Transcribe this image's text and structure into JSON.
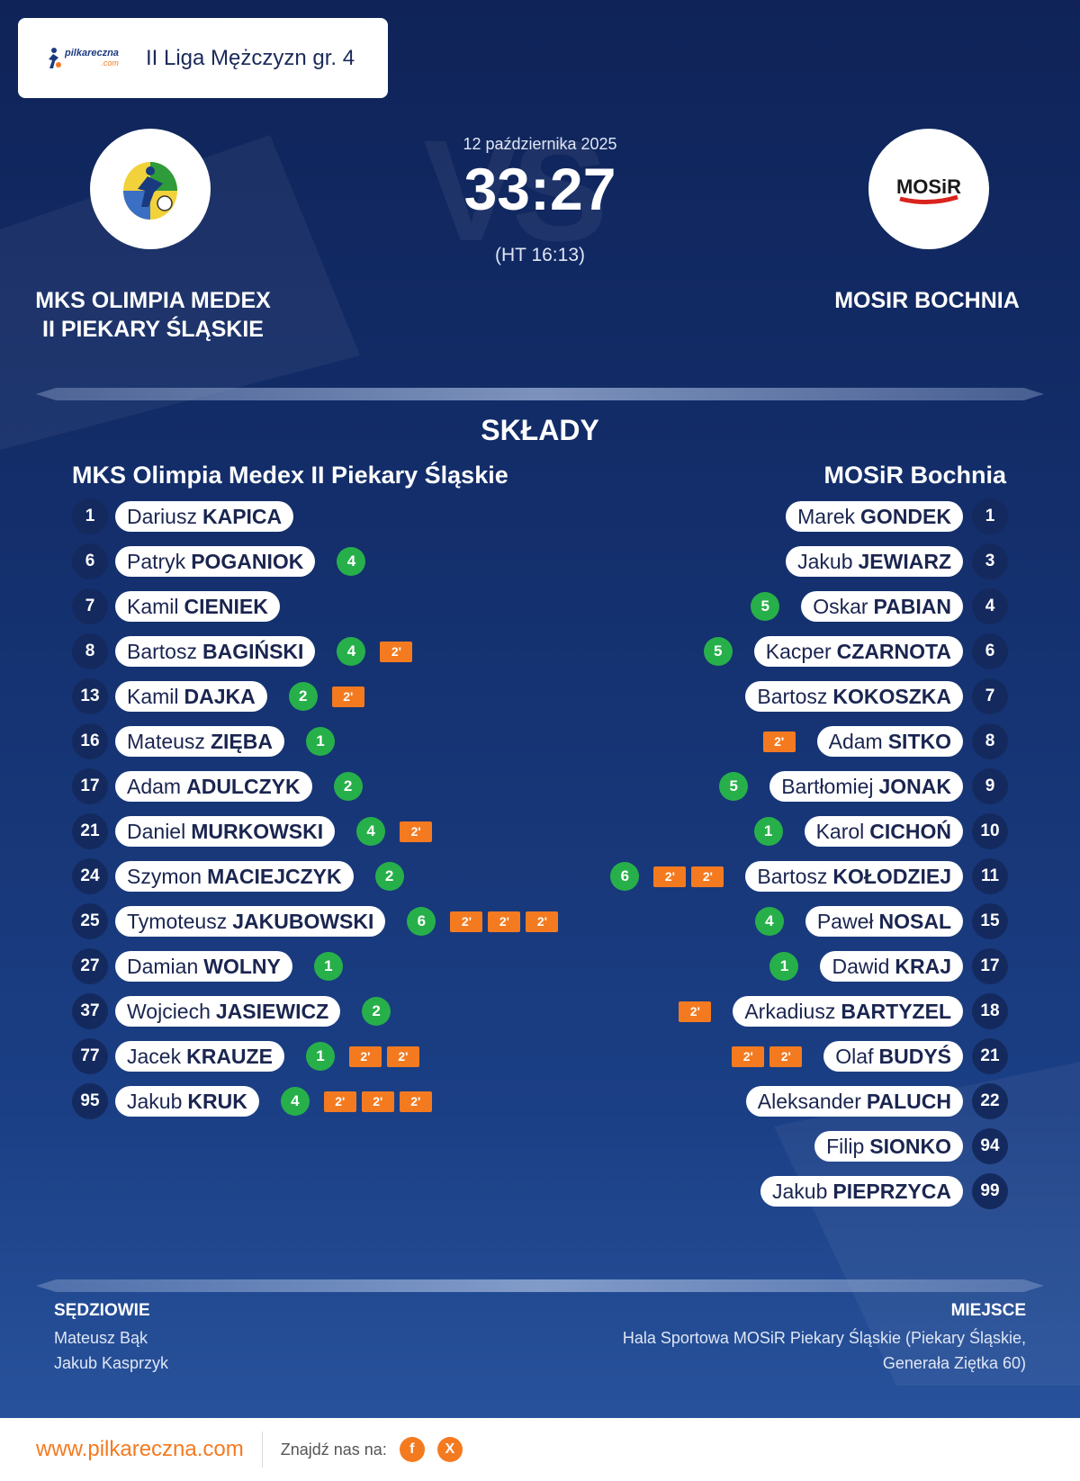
{
  "league": {
    "title": "II Liga Mężczyzn gr. 4",
    "logo_text": "pilkareczna",
    "logo_subtext": ".com"
  },
  "match": {
    "date": "12 października 2025",
    "score": "33:27",
    "halftime": "(HT 16:13)",
    "vs_watermark": "VS"
  },
  "home": {
    "name_line1": "MKS OLIMPIA MEDEX",
    "name_line2": "II PIEKARY ŚLĄSKIE",
    "squad_title": "MKS Olimpia Medex II Piekary Śląskie",
    "players": [
      {
        "num": "1",
        "first": "Dariusz",
        "last": "KAPICA",
        "goals": null,
        "pens": 0
      },
      {
        "num": "6",
        "first": "Patryk",
        "last": "POGANIOK",
        "goals": "4",
        "pens": 0
      },
      {
        "num": "7",
        "first": "Kamil",
        "last": "CIENIEK",
        "goals": null,
        "pens": 0
      },
      {
        "num": "8",
        "first": "Bartosz",
        "last": "BAGIŃSKI",
        "goals": "4",
        "pens": 1
      },
      {
        "num": "13",
        "first": "Kamil",
        "last": "DAJKA",
        "goals": "2",
        "pens": 1
      },
      {
        "num": "16",
        "first": "Mateusz",
        "last": "ZIĘBA",
        "goals": "1",
        "pens": 0
      },
      {
        "num": "17",
        "first": "Adam",
        "last": "ADULCZYK",
        "goals": "2",
        "pens": 0
      },
      {
        "num": "21",
        "first": "Daniel",
        "last": "MURKOWSKI",
        "goals": "4",
        "pens": 1
      },
      {
        "num": "24",
        "first": "Szymon",
        "last": "MACIEJCZYK",
        "goals": "2",
        "pens": 0
      },
      {
        "num": "25",
        "first": "Tymoteusz",
        "last": "JAKUBOWSKI",
        "goals": "6",
        "pens": 3
      },
      {
        "num": "27",
        "first": "Damian",
        "last": "WOLNY",
        "goals": "1",
        "pens": 0
      },
      {
        "num": "37",
        "first": "Wojciech",
        "last": "JASIEWICZ",
        "goals": "2",
        "pens": 0
      },
      {
        "num": "77",
        "first": "Jacek",
        "last": "KRAUZE",
        "goals": "1",
        "pens": 2
      },
      {
        "num": "95",
        "first": "Jakub",
        "last": "KRUK",
        "goals": "4",
        "pens": 3
      }
    ]
  },
  "away": {
    "name": "MOSIR BOCHNIA",
    "logo_text": "MOSiR",
    "squad_title": "MOSiR Bochnia",
    "players": [
      {
        "num": "1",
        "first": "Marek",
        "last": "GONDEK",
        "goals": null,
        "pens": 0
      },
      {
        "num": "3",
        "first": "Jakub",
        "last": "JEWIARZ",
        "goals": null,
        "pens": 0
      },
      {
        "num": "4",
        "first": "Oskar",
        "last": "PABIAN",
        "goals": "5",
        "pens": 0
      },
      {
        "num": "6",
        "first": "Kacper",
        "last": "CZARNOTA",
        "goals": "5",
        "pens": 0
      },
      {
        "num": "7",
        "first": "Bartosz",
        "last": "KOKOSZKA",
        "goals": null,
        "pens": 0
      },
      {
        "num": "8",
        "first": "Adam",
        "last": "SITKO",
        "goals": null,
        "pens": 1
      },
      {
        "num": "9",
        "first": "Bartłomiej",
        "last": "JONAK",
        "goals": "5",
        "pens": 0
      },
      {
        "num": "10",
        "first": "Karol",
        "last": "CICHOŃ",
        "goals": "1",
        "pens": 0
      },
      {
        "num": "11",
        "first": "Bartosz",
        "last": "KOŁODZIEJ",
        "goals": "6",
        "pens": 2
      },
      {
        "num": "15",
        "first": "Paweł",
        "last": "NOSAL",
        "goals": "4",
        "pens": 0
      },
      {
        "num": "17",
        "first": "Dawid",
        "last": "KRAJ",
        "goals": "1",
        "pens": 0
      },
      {
        "num": "18",
        "first": "Arkadiusz",
        "last": "BARTYZEL",
        "goals": null,
        "pens": 1
      },
      {
        "num": "21",
        "first": "Olaf",
        "last": "BUDYŚ",
        "goals": null,
        "pens": 2
      },
      {
        "num": "22",
        "first": "Aleksander",
        "last": "PALUCH",
        "goals": null,
        "pens": 0
      },
      {
        "num": "94",
        "first": "Filip",
        "last": "SIONKO",
        "goals": null,
        "pens": 0
      },
      {
        "num": "99",
        "first": "Jakub",
        "last": "PIEPRZYCA",
        "goals": null,
        "pens": 0
      }
    ]
  },
  "penalty_label": "2'",
  "section_title": "SKŁADY",
  "referees": {
    "label": "SĘDZIOWIE",
    "names": [
      "Mateusz Bąk",
      "Jakub Kasprzyk"
    ]
  },
  "venue": {
    "label": "MIEJSCE",
    "line1": "Hala Sportowa MOSiR Piekary Śląskie (Piekary Śląskie,",
    "line2": "Generała Ziętka 60)"
  },
  "footer": {
    "url": "www.pilkareczna.com",
    "find_us": "Znajdź nas na:",
    "social": [
      "f",
      "X"
    ]
  },
  "colors": {
    "goal": "#27b04a",
    "penalty": "#f47a20",
    "background": "#14306e"
  }
}
